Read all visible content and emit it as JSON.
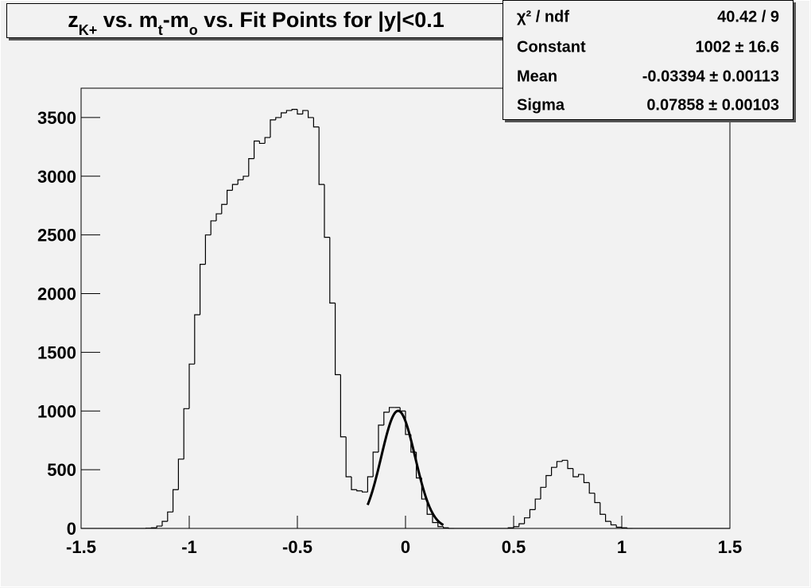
{
  "chart_data": {
    "type": "histogram",
    "title": [
      {
        "text": "z"
      },
      {
        "text": "K+",
        "sub": true
      },
      {
        "text": " vs. m"
      },
      {
        "text": "t",
        "sub": true
      },
      {
        "text": "-m"
      },
      {
        "text": "o",
        "sub": true
      },
      {
        "text": " vs. Fit Points for |y|<0.1"
      }
    ],
    "bins": [
      -1.5,
      -1.475,
      -1.45,
      -1.425,
      -1.4,
      -1.375,
      -1.35,
      -1.325,
      -1.3,
      -1.275,
      -1.25,
      -1.225,
      -1.2,
      -1.175,
      -1.15,
      -1.125,
      -1.1,
      -1.075,
      -1.05,
      -1.025,
      -1,
      -0.975,
      -0.95,
      -0.925,
      -0.9,
      -0.875,
      -0.85,
      -0.825,
      -0.8,
      -0.775,
      -0.75,
      -0.725,
      -0.7,
      -0.675,
      -0.65,
      -0.625,
      -0.6,
      -0.575,
      -0.55,
      -0.525,
      -0.5,
      -0.475,
      -0.45,
      -0.425,
      -0.4,
      -0.375,
      -0.35,
      -0.325,
      -0.3,
      -0.275,
      -0.25,
      -0.225,
      -0.2,
      -0.175,
      -0.15,
      -0.125,
      -0.1,
      -0.075,
      -0.05,
      -0.025,
      0,
      0.025,
      0.05,
      0.075,
      0.1,
      0.125,
      0.15,
      0.175,
      0.2,
      0.225,
      0.25,
      0.275,
      0.3,
      0.325,
      0.35,
      0.375,
      0.4,
      0.425,
      0.45,
      0.475,
      0.5,
      0.525,
      0.55,
      0.575,
      0.6,
      0.625,
      0.65,
      0.675,
      0.7,
      0.725,
      0.75,
      0.775,
      0.8,
      0.825,
      0.85,
      0.875,
      0.9,
      0.925,
      0.95,
      0.975,
      1,
      1.025,
      1.05,
      1.075,
      1.1,
      1.125,
      1.15,
      1.175,
      1.2,
      1.225,
      1.25,
      1.275,
      1.3,
      1.325,
      1.35,
      1.375,
      1.4,
      1.425,
      1.45,
      1.475,
      1.5
    ],
    "values": [
      0,
      0,
      0,
      0,
      0,
      0,
      0,
      0,
      0,
      0,
      0,
      0,
      2,
      5,
      20,
      60,
      140,
      330,
      590,
      1020,
      1400,
      1820,
      2250,
      2500,
      2620,
      2680,
      2760,
      2880,
      2930,
      2970,
      3000,
      3150,
      3300,
      3280,
      3330,
      3480,
      3500,
      3540,
      3560,
      3570,
      3530,
      3560,
      3500,
      3420,
      2930,
      2480,
      1920,
      1310,
      780,
      440,
      330,
      320,
      310,
      440,
      650,
      880,
      990,
      1030,
      1030,
      1000,
      800,
      650,
      430,
      250,
      120,
      50,
      15,
      5,
      0,
      0,
      0,
      0,
      0,
      0,
      0,
      0,
      0,
      0,
      0,
      5,
      15,
      40,
      90,
      160,
      250,
      350,
      450,
      520,
      570,
      580,
      510,
      440,
      460,
      390,
      300,
      220,
      120,
      60,
      30,
      10,
      5,
      0,
      0,
      0,
      0,
      0,
      0,
      0,
      0,
      0,
      0,
      0,
      0,
      0,
      0,
      0,
      0,
      0,
      0,
      0,
      0
    ],
    "color": "#000000",
    "xlim": [
      -1.5,
      1.5
    ],
    "xticks": [
      -1.5,
      -1,
      -0.5,
      0,
      0.5,
      1,
      1.5
    ],
    "ylim": [
      0,
      3750
    ],
    "yticks": [
      0,
      500,
      1000,
      1500,
      2000,
      2500,
      3000,
      3500
    ],
    "fit": {
      "chi2_label": "χ² / ndf",
      "chi2": "40.42 / 9",
      "params": [
        {
          "name": "Constant",
          "value": 1002,
          "error": 16.6,
          "label": "1002 ± 16.6"
        },
        {
          "name": "Mean",
          "value": -0.03394,
          "error": 0.00113,
          "label": "-0.03394 ± 0.00113"
        },
        {
          "name": "Sigma",
          "value": 0.07858,
          "error": 0.00103,
          "label": "0.07858 ± 0.00103"
        }
      ],
      "range": [
        -0.175,
        0.175
      ],
      "color": "#000000"
    }
  }
}
